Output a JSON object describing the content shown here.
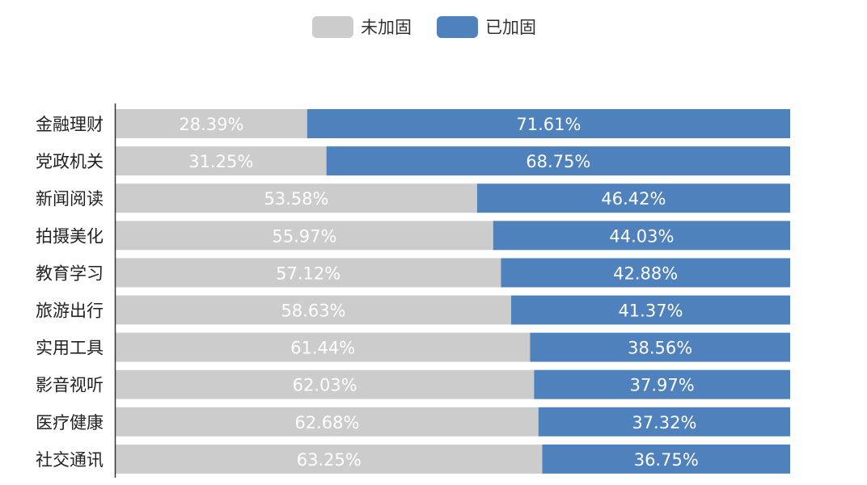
{
  "chart_data": {
    "type": "bar",
    "orientation": "horizontal",
    "stacked": true,
    "percent_stacked": true,
    "categories": [
      "金融理财",
      "党政机关",
      "新闻阅读",
      "拍摄美化",
      "教育学习",
      "旅游出行",
      "实用工具",
      "影音视听",
      "医疗健康",
      "社交通讯"
    ],
    "series": [
      {
        "name": "未加固",
        "color": "#cccccc",
        "values": [
          28.39,
          31.25,
          53.58,
          55.97,
          57.12,
          58.63,
          61.44,
          62.03,
          62.68,
          63.25
        ],
        "labels": [
          "28.39%",
          "31.25%",
          "53.58%",
          "55.97%",
          "57.12%",
          "58.63%",
          "61.44%",
          "62.03%",
          "62.68%",
          "63.25%"
        ]
      },
      {
        "name": "已加固",
        "color": "#4f81bd",
        "values": [
          71.61,
          68.75,
          46.42,
          44.03,
          42.88,
          41.37,
          38.56,
          37.97,
          37.32,
          36.75
        ],
        "labels": [
          "71.61%",
          "68.75%",
          "46.42%",
          "44.03%",
          "42.88%",
          "41.37%",
          "38.56%",
          "37.97%",
          "37.32%",
          "36.75%"
        ]
      }
    ],
    "xlim": [
      0,
      100
    ],
    "legend_position": "top",
    "grid": false
  }
}
